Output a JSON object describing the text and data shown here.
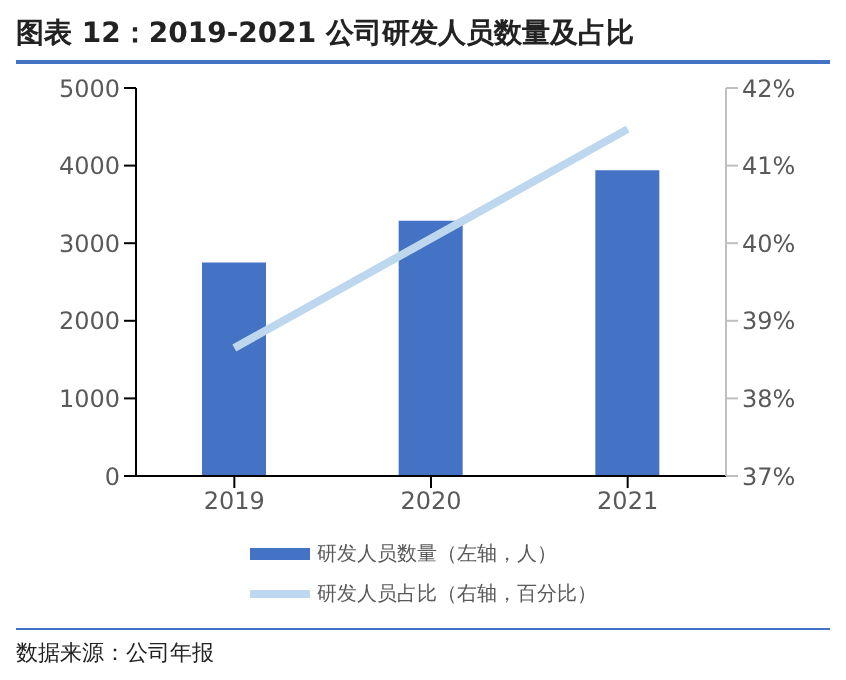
{
  "chart_data": {
    "type": "bar",
    "title": "图表 12：2019-2021 公司研发人员数量及占比",
    "categories": [
      "2019",
      "2020",
      "2021"
    ],
    "series": [
      {
        "name": "研发人员数量（左轴，人）",
        "color": "#4472c4",
        "values": [
          2750,
          3290,
          3940
        ]
      },
      {
        "name": "研发人员占比（右轴，百分比）",
        "type": "line",
        "axis": "y2",
        "color": "#bdd7ee",
        "values": [
          38.65,
          40.06,
          41.47
        ]
      }
    ],
    "ylim": [
      0,
      5000
    ],
    "yticks": [
      0,
      1000,
      2000,
      3000,
      4000,
      5000
    ],
    "y2lim": [
      37,
      42
    ],
    "y2ticks": [
      {
        "value": 37,
        "label": "37%"
      },
      {
        "value": 38,
        "label": "38%"
      },
      {
        "value": 39,
        "label": "39%"
      },
      {
        "value": 40,
        "label": "40%"
      },
      {
        "value": 41,
        "label": "41%"
      },
      {
        "value": 42,
        "label": "42%"
      }
    ],
    "grid": false,
    "legend": "bottom",
    "marker": "none",
    "line_style": "solid",
    "annotations": [
      "数据来源：公司年报"
    ]
  }
}
